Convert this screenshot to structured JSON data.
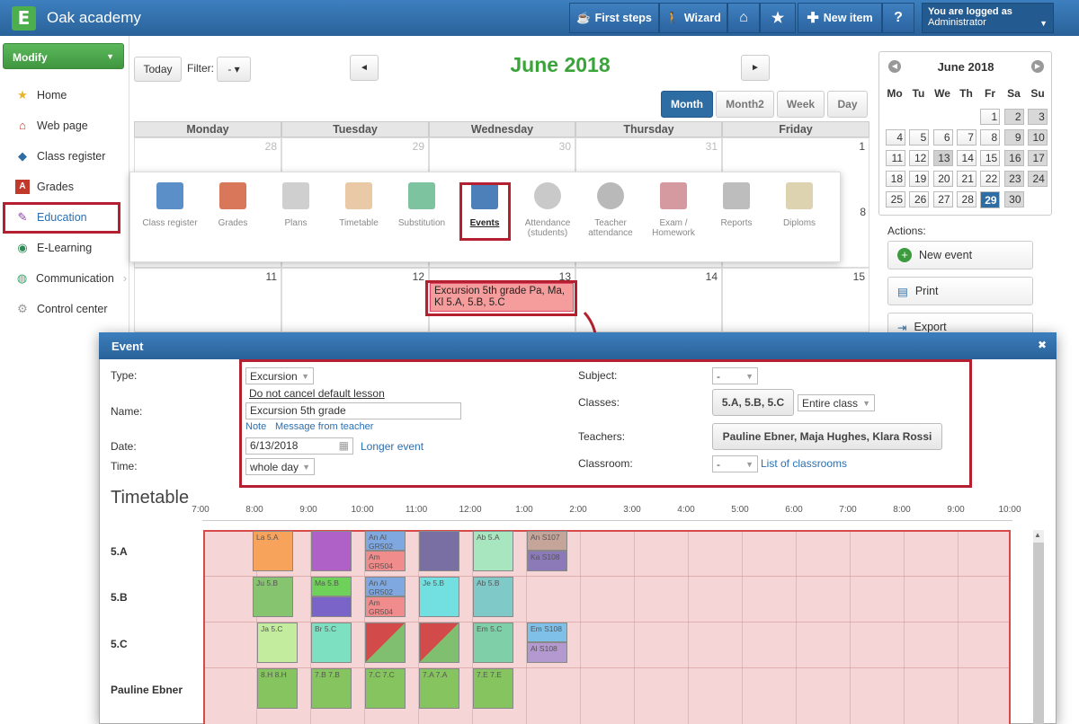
{
  "app": {
    "title": "Oak academy",
    "logo_letter": "E"
  },
  "topnav": {
    "first_steps": "First steps",
    "wizard": "Wizard",
    "new_item": "New item",
    "help": "?",
    "logged_as": "You are logged as",
    "user": "Administrator"
  },
  "sidebar": {
    "modify": "Modify",
    "items": [
      {
        "label": "Home",
        "icon": "star-icon"
      },
      {
        "label": "Web page",
        "icon": "house-icon"
      },
      {
        "label": "Class register",
        "icon": "book-icon"
      },
      {
        "label": "Grades",
        "icon": "grades-icon"
      },
      {
        "label": "Education",
        "icon": "education-icon"
      },
      {
        "label": "E-Learning",
        "icon": "globe-icon"
      },
      {
        "label": "Communication",
        "icon": "communication-icon"
      },
      {
        "label": "Control center",
        "icon": "gear-icon"
      }
    ]
  },
  "calendar": {
    "today": "Today",
    "filter_label": "Filter:",
    "filter_value": "- ▾",
    "prev": "◄",
    "next": "►",
    "title": "June 2018",
    "views": [
      "Month",
      "Month2",
      "Week",
      "Day"
    ],
    "weekdays": [
      "Monday",
      "Tuesday",
      "Wednesday",
      "Thursday",
      "Friday"
    ],
    "row1": [
      "28",
      "29",
      "30",
      "31",
      "1"
    ],
    "row2_fri": "8",
    "row3": [
      "11",
      "12",
      "13",
      "14",
      "15"
    ],
    "event_text": "Excursion 5th grade Pa, Ma, Kl 5.A, 5.B, 5.C"
  },
  "popup_menu": [
    {
      "label": "Class register",
      "icon": "class-register-icon",
      "color": "#5b8fc7"
    },
    {
      "label": "Grades",
      "icon": "grades-icon",
      "color": "#d9775a"
    },
    {
      "label": "Plans",
      "icon": "plans-icon",
      "color": "#cfcfcf"
    },
    {
      "label": "Timetable",
      "icon": "timetable-icon",
      "color": "#e9c9a6"
    },
    {
      "label": "Substitution",
      "icon": "substitution-icon",
      "color": "#7ec3a0"
    },
    {
      "label": "Events",
      "icon": "events-icon",
      "color": "#4d7fb8"
    },
    {
      "label": "Attendance (students)",
      "icon": "attendance-icon",
      "color": "#c9c9c9"
    },
    {
      "label": "Teacher attendance",
      "icon": "teacher-attendance-icon",
      "color": "#b9b9b9"
    },
    {
      "label": "Exam / Homework",
      "icon": "exam-icon",
      "color": "#d49aa0"
    },
    {
      "label": "Reports",
      "icon": "reports-icon",
      "color": "#bdbdbd"
    },
    {
      "label": "Diploms",
      "icon": "diploms-icon",
      "color": "#ddd3b0"
    }
  ],
  "minical": {
    "title": "June 2018",
    "dow": [
      "Mo",
      "Tu",
      "We",
      "Th",
      "Fr",
      "Sa",
      "Su"
    ],
    "weeks": [
      [
        "",
        "",
        "",
        "",
        "1",
        "2",
        "3"
      ],
      [
        "4",
        "5",
        "6",
        "7",
        "8",
        "9",
        "10"
      ],
      [
        "11",
        "12",
        "13",
        "14",
        "15",
        "16",
        "17"
      ],
      [
        "18",
        "19",
        "20",
        "21",
        "22",
        "23",
        "24"
      ],
      [
        "25",
        "26",
        "27",
        "28",
        "29",
        "30",
        ""
      ]
    ],
    "selected": "29"
  },
  "actions": {
    "label": "Actions:",
    "new_event": "New event",
    "print": "Print",
    "export": "Export"
  },
  "modal": {
    "title": "Event",
    "close": "✖",
    "type_label": "Type:",
    "type_value": "Excursion",
    "no_cancel": "Do not cancel default lesson",
    "name_label": "Name:",
    "name_value": "Excursion 5th grade",
    "note": "Note",
    "msg_teacher": "Message from teacher",
    "date_label": "Date:",
    "date_value": "6/13/2018",
    "longer": "Longer event",
    "time_label": "Time:",
    "time_value": "whole day",
    "subject_label": "Subject:",
    "subject_value": "-",
    "classes_label": "Classes:",
    "classes_value": "5.A, 5.B, 5.C",
    "classes_scope": "Entire class",
    "teachers_label": "Teachers:",
    "teachers_value": "Pauline Ebner, Maja Hughes, Klara Rossi",
    "classroom_label": "Classroom:",
    "classroom_value": "-",
    "classroom_link": "List of classrooms"
  },
  "timetable": {
    "title": "Timetable",
    "hours": [
      "7:00",
      "8:00",
      "9:00",
      "10:00",
      "11:00",
      "12:00",
      "1:00",
      "2:00",
      "3:00",
      "4:00",
      "5:00",
      "6:00",
      "7:00",
      "8:00",
      "9:00",
      "10:00"
    ],
    "rows": [
      "5.A",
      "5.B",
      "5.C",
      "Pauline Ebner"
    ],
    "blocks": {
      "a1": "La 5.A",
      "a2": "",
      "a3": "An Al GR502",
      "a4": "Am GR504",
      "a5": "",
      "a6": "Ab 5.A",
      "a7": "An S107",
      "a8": "Ka S108",
      "b1": "Ju 5.B",
      "b2": "Ma 5.B",
      "b3": "An Al GR502",
      "b4": "Am GR504",
      "b5": "Je 5.B",
      "b6": "Ab 5.B",
      "c1": "Ja 5.C",
      "c2": "Br 5.C",
      "c3": "",
      "c4": "",
      "c5": "Em 5.C",
      "c6": "Em S108",
      "c7": "Al S108",
      "p1": "8.H 8.H",
      "p2": "7.B 7.B",
      "p3": "7.C 7.C",
      "p4": "7.A 7.A",
      "p5": "7.E 7.E"
    }
  }
}
